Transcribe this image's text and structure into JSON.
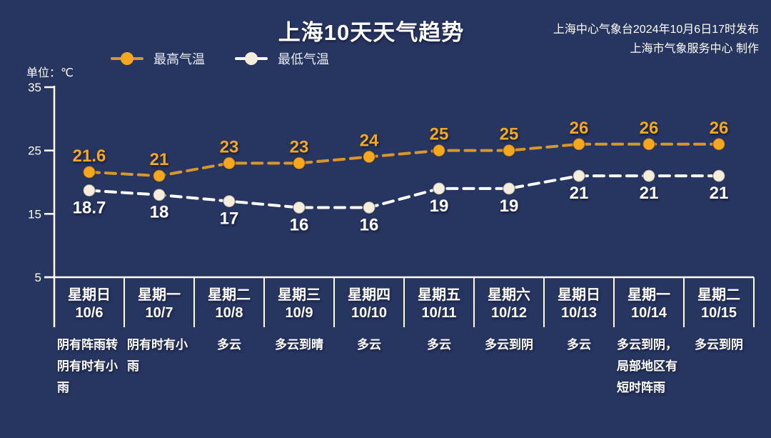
{
  "colors": {
    "background": "#273561",
    "axis": "#FFFFFF",
    "high_accent": "#F5A71F",
    "low_accent": "#F5EEDC"
  },
  "header": {
    "title": "上海10天天气趋势",
    "source_line1": "上海中心气象台2024年10月6日17时发布",
    "source_line2": "上海市气象服务中心 制作",
    "unit_label": "单位：℃"
  },
  "legend": [
    {
      "label": "最高气温",
      "dot_color": "#F5A71F",
      "line_color": "#D8962B"
    },
    {
      "label": "最低气温",
      "dot_color": "#F5EEDC",
      "line_color": "#FFFFFF"
    }
  ],
  "chart_data": {
    "type": "line",
    "title": "上海10天天气趋势",
    "ylabel": "单位：℃",
    "ylim": [
      5,
      35
    ],
    "yticks": [
      35,
      25,
      15,
      5
    ],
    "grid": false,
    "legend_position": "top",
    "line_style": "dashed",
    "categories": [
      "10/6",
      "10/7",
      "10/8",
      "10/9",
      "10/10",
      "10/11",
      "10/12",
      "10/13",
      "10/14",
      "10/15"
    ],
    "series": [
      {
        "name": "最高气温",
        "values": [
          21.6,
          21,
          23,
          23,
          24,
          25,
          25,
          26,
          26,
          26
        ],
        "dot_color": "#F5A71F",
        "line_color": "#D8962B",
        "label_color": "#F5A71F",
        "label_position": "above"
      },
      {
        "name": "最低气温",
        "values": [
          18.7,
          18,
          17,
          16,
          16,
          19,
          19,
          21,
          21,
          21
        ],
        "dot_color": "#F5EEDC",
        "line_color": "#FFFFFF",
        "label_color": "#FFFFFF",
        "label_position": "below"
      }
    ],
    "days": [
      {
        "day": "星期日",
        "date": "10/6",
        "weather": "阴有阵雨转阴有时有小雨"
      },
      {
        "day": "星期一",
        "date": "10/7",
        "weather": "阴有时有小雨"
      },
      {
        "day": "星期二",
        "date": "10/8",
        "weather": "多云"
      },
      {
        "day": "星期三",
        "date": "10/9",
        "weather": "多云到晴"
      },
      {
        "day": "星期四",
        "date": "10/10",
        "weather": "多云"
      },
      {
        "day": "星期五",
        "date": "10/11",
        "weather": "多云"
      },
      {
        "day": "星期六",
        "date": "10/12",
        "weather": "多云到阴"
      },
      {
        "day": "星期日",
        "date": "10/13",
        "weather": "多云"
      },
      {
        "day": "星期一",
        "date": "10/14",
        "weather": "多云到阴，局部地区有短时阵雨"
      },
      {
        "day": "星期二",
        "date": "10/15",
        "weather": "多云到阴"
      }
    ]
  }
}
